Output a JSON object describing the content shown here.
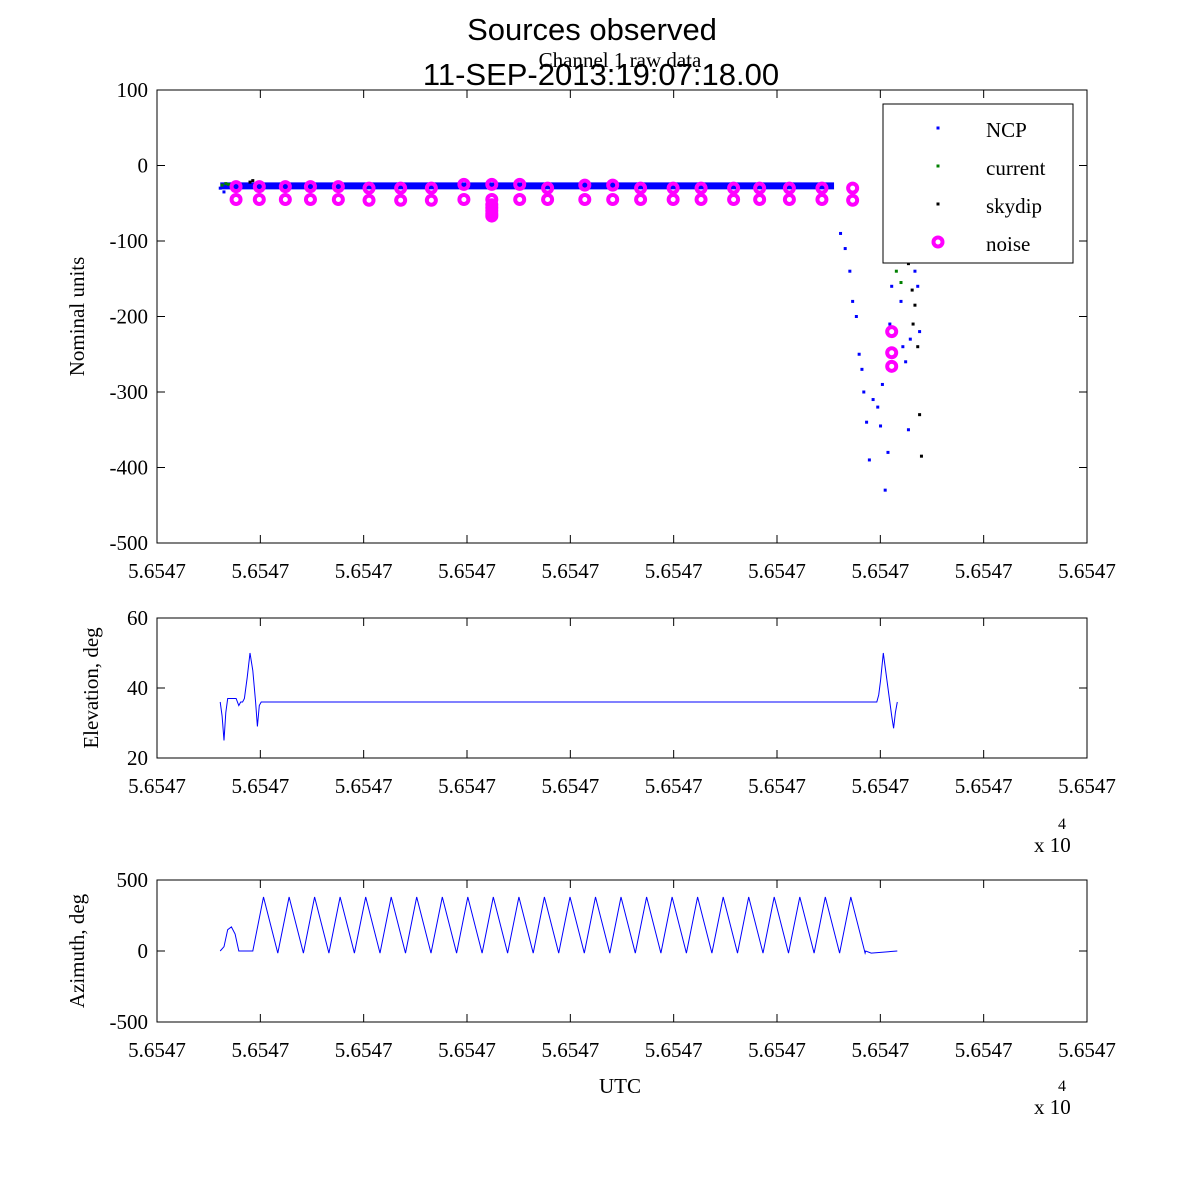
{
  "figure": {
    "title_line1": "Sources observed",
    "title_line2": "11-SEP-2013:19:07:18.00"
  },
  "chart_data": [
    {
      "type": "scatter",
      "title": "Channel 1 raw data",
      "xlabel": "",
      "ylabel": "Nominal units",
      "xlim": [
        0,
        1
      ],
      "ylim": [
        -500,
        100
      ],
      "yticks": [
        100,
        0,
        -100,
        -200,
        -300,
        -400,
        -500
      ],
      "ytick_labels": [
        "100",
        "0",
        "-100",
        "-200",
        "-300",
        "-400",
        "-500"
      ],
      "xtick_labels": [
        "5.6547",
        "5.6547",
        "5.6547",
        "5.6547",
        "5.6547",
        "5.6547",
        "5.6547",
        "5.6547",
        "5.6547",
        "5.6547"
      ],
      "x_exponent_base": "x 10",
      "x_exponent": "4",
      "legend": {
        "position": "top-right",
        "entries": [
          {
            "label": "NCP",
            "color": "#0000ff",
            "marker": "dot"
          },
          {
            "label": "current",
            "color": "#008000",
            "marker": "dot"
          },
          {
            "label": "skydip",
            "color": "#000000",
            "marker": "dot"
          },
          {
            "label": "noise",
            "color": "#ff00ff",
            "marker": "circle"
          }
        ]
      },
      "series": [
        {
          "name": "NCP",
          "color": "#0000ff",
          "band": {
            "x_start": 0.068,
            "x_end": 0.728,
            "y": -27
          },
          "points": [
            [
              0.068,
              -30
            ],
            [
              0.07,
              -25
            ],
            [
              0.072,
              -35
            ],
            [
              0.735,
              -90
            ],
            [
              0.74,
              -110
            ],
            [
              0.745,
              -140
            ],
            [
              0.748,
              -180
            ],
            [
              0.752,
              -200
            ],
            [
              0.755,
              -250
            ],
            [
              0.758,
              -270
            ],
            [
              0.76,
              -300
            ],
            [
              0.763,
              -340
            ],
            [
              0.766,
              -390
            ],
            [
              0.77,
              -310
            ],
            [
              0.775,
              -320
            ],
            [
              0.778,
              -345
            ],
            [
              0.78,
              -290
            ],
            [
              0.783,
              -430
            ],
            [
              0.786,
              -380
            ],
            [
              0.788,
              -210
            ],
            [
              0.79,
              -160
            ],
            [
              0.795,
              -120
            ],
            [
              0.8,
              -180
            ],
            [
              0.802,
              -240
            ],
            [
              0.805,
              -260
            ],
            [
              0.808,
              -350
            ],
            [
              0.81,
              -230
            ],
            [
              0.812,
              -100
            ],
            [
              0.815,
              -140
            ],
            [
              0.818,
              -160
            ],
            [
              0.82,
              -220
            ]
          ]
        },
        {
          "name": "current",
          "color": "#008000",
          "points": [
            [
              0.07,
              -26
            ],
            [
              0.074,
              -24
            ],
            [
              0.077,
              -25
            ],
            [
              0.79,
              -110
            ],
            [
              0.795,
              -140
            ],
            [
              0.8,
              -155
            ]
          ]
        },
        {
          "name": "skydip",
          "color": "#000000",
          "points": [
            [
              0.1,
              -22
            ],
            [
              0.103,
              -20
            ],
            [
              0.106,
              -25
            ],
            [
              0.808,
              -130
            ],
            [
              0.812,
              -165
            ],
            [
              0.815,
              -185
            ],
            [
              0.818,
              -240
            ],
            [
              0.82,
              -330
            ],
            [
              0.822,
              -385
            ],
            [
              0.813,
              -210
            ]
          ]
        },
        {
          "name": "noise",
          "color": "#ff00ff",
          "x": [
            0.085,
            0.11,
            0.138,
            0.165,
            0.195,
            0.228,
            0.262,
            0.295,
            0.33,
            0.36,
            0.39,
            0.42,
            0.46,
            0.49,
            0.52,
            0.555,
            0.585,
            0.62,
            0.648,
            0.68,
            0.715,
            0.748
          ],
          "upper": [
            -28,
            -28,
            -28,
            -28,
            -28,
            -30,
            -30,
            -30,
            -25,
            -25,
            -25,
            -30,
            -26,
            -26,
            -30,
            -30,
            -30,
            -30,
            -30,
            -30,
            -30,
            -30
          ],
          "lower": [
            -45,
            -45,
            -45,
            -45,
            -45,
            -46,
            -46,
            -46,
            -45,
            -45,
            -45,
            -45,
            -45,
            -45,
            -45,
            -45,
            -45,
            -45,
            -45,
            -45,
            -45,
            -46
          ],
          "dip": {
            "x": 0.36,
            "values": [
              -52,
              -56,
              -60,
              -64,
              -67
            ]
          },
          "outliers": [
            [
              0.79,
              -220
            ],
            [
              0.79,
              -248
            ],
            [
              0.79,
              -266
            ]
          ]
        }
      ]
    },
    {
      "type": "line",
      "title": "",
      "xlabel": "",
      "ylabel": "Elevation, deg",
      "xlim": [
        0,
        1
      ],
      "ylim": [
        20,
        60
      ],
      "yticks": [
        60,
        40,
        20
      ],
      "ytick_labels": [
        "60",
        "40",
        "20"
      ],
      "xtick_labels": [
        "5.6547",
        "5.6547",
        "5.6547",
        "5.6547",
        "5.6547",
        "5.6547",
        "5.6547",
        "5.6547",
        "5.6547",
        "5.6547"
      ],
      "x_exponent_base": "x 10",
      "x_exponent": "4",
      "series": [
        {
          "name": "Elevation",
          "color": "#0000ff",
          "x": [
            0.068,
            0.07,
            0.072,
            0.074,
            0.076,
            0.085,
            0.088,
            0.09,
            0.092,
            0.094,
            0.097,
            0.1,
            0.103,
            0.106,
            0.108,
            0.11,
            0.112,
            0.114,
            0.12,
            0.13,
            0.2,
            0.4,
            0.6,
            0.76,
            0.774,
            0.776,
            0.778,
            0.781,
            0.784,
            0.787,
            0.79,
            0.792,
            0.794,
            0.796
          ],
          "y": [
            36,
            32,
            25,
            33,
            37,
            37,
            35,
            36,
            36,
            37,
            43,
            50,
            45,
            36,
            29,
            35,
            36,
            36,
            36,
            36,
            36,
            36,
            36,
            36,
            36,
            38,
            42,
            50,
            44,
            38,
            32,
            28.5,
            33,
            36
          ]
        }
      ]
    },
    {
      "type": "line",
      "title": "",
      "xlabel": "UTC",
      "ylabel": "Azimuth, deg",
      "xlim": [
        0,
        1
      ],
      "ylim": [
        -500,
        500
      ],
      "yticks": [
        500,
        0,
        -500
      ],
      "ytick_labels": [
        "500",
        "0",
        "-500"
      ],
      "xtick_labels": [
        "5.6547",
        "5.6547",
        "5.6547",
        "5.6547",
        "5.6547",
        "5.6547",
        "5.6547",
        "5.6547",
        "5.6547",
        "5.6547"
      ],
      "x_exponent_base": "x 10",
      "x_exponent": "4",
      "series": [
        {
          "name": "Azimuth",
          "color": "#0000ff",
          "bump": {
            "x": [
              0.068,
              0.072,
              0.076,
              0.08,
              0.084,
              0.088,
              0.1,
              0.103
            ],
            "y": [
              0,
              30,
              150,
              170,
              120,
              0,
              0,
              0
            ]
          },
          "zigzag": {
            "x_start": 0.103,
            "x_end": 0.762,
            "n_peaks": 24,
            "min": -15,
            "max": 380
          },
          "tail": {
            "x": [
              0.762,
              0.768,
              0.796
            ],
            "y": [
              0,
              -15,
              0
            ]
          }
        }
      ]
    }
  ]
}
